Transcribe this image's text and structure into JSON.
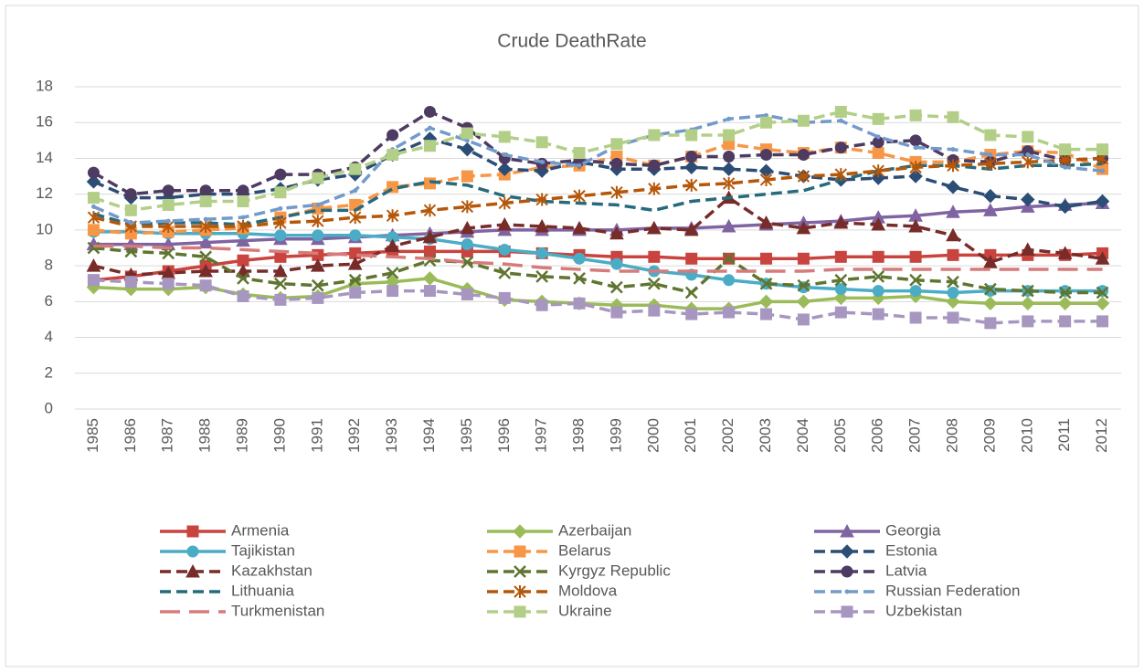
{
  "chart_data": {
    "type": "line",
    "title": "Crude DeathRate",
    "categories": [
      "1985",
      "1986",
      "1987",
      "1988",
      "1989",
      "1990",
      "1991",
      "1992",
      "1993",
      "1994",
      "1995",
      "1996",
      "1997",
      "1998",
      "1999",
      "2000",
      "2001",
      "2002",
      "2003",
      "2004",
      "2005",
      "2006",
      "2007",
      "2008",
      "2009",
      "2010",
      "2011",
      "2012"
    ],
    "ylim": [
      0,
      18
    ],
    "yticks": [
      0,
      2,
      4,
      6,
      8,
      10,
      12,
      14,
      16,
      18
    ],
    "grid": true,
    "legend": "bottom",
    "series": [
      {
        "name": "Armenia",
        "color": "#c9443f",
        "line_style": "solid",
        "marker": "square",
        "values": [
          7.2,
          7.4,
          7.7,
          8.0,
          8.3,
          8.5,
          8.6,
          8.7,
          8.8,
          8.8,
          8.8,
          8.8,
          8.7,
          8.6,
          8.5,
          8.5,
          8.4,
          8.4,
          8.4,
          8.4,
          8.5,
          8.5,
          8.5,
          8.6,
          8.6,
          8.6,
          8.6,
          8.7
        ]
      },
      {
        "name": "Azerbaijan",
        "color": "#9bbb59",
        "line_style": "solid",
        "marker": "diamond",
        "values": [
          6.8,
          6.7,
          6.7,
          6.8,
          6.4,
          6.2,
          6.3,
          7.0,
          7.1,
          7.3,
          6.7,
          6.1,
          6.0,
          5.9,
          5.8,
          5.8,
          5.6,
          5.6,
          6.0,
          6.0,
          6.2,
          6.2,
          6.3,
          6.0,
          5.9,
          5.9,
          5.9,
          5.9
        ]
      },
      {
        "name": "Georgia",
        "color": "#8064a2",
        "line_style": "solid",
        "marker": "triangle",
        "values": [
          9.2,
          9.2,
          9.2,
          9.3,
          9.4,
          9.5,
          9.5,
          9.6,
          9.7,
          9.8,
          9.9,
          10.0,
          10.0,
          10.0,
          10.0,
          10.1,
          10.1,
          10.2,
          10.3,
          10.4,
          10.5,
          10.7,
          10.8,
          11.0,
          11.1,
          11.3,
          11.4,
          11.5
        ]
      },
      {
        "name": "Tajikistan",
        "color": "#4bacc6",
        "line_style": "solid",
        "marker": "circle",
        "values": [
          9.9,
          9.9,
          9.8,
          9.8,
          9.8,
          9.7,
          9.7,
          9.7,
          9.6,
          9.5,
          9.2,
          8.9,
          8.7,
          8.4,
          8.1,
          7.7,
          7.5,
          7.2,
          7.0,
          6.8,
          6.7,
          6.6,
          6.6,
          6.5,
          6.6,
          6.6,
          6.6,
          6.6
        ]
      },
      {
        "name": "Belarus",
        "color": "#f79646",
        "line_style": "dash",
        "marker": "square",
        "values": [
          10.0,
          9.8,
          9.9,
          10.0,
          10.1,
          10.7,
          11.2,
          11.4,
          12.4,
          12.6,
          13.0,
          13.1,
          13.5,
          13.6,
          14.1,
          13.6,
          14.1,
          14.8,
          14.5,
          14.3,
          14.6,
          14.3,
          13.8,
          13.8,
          14.2,
          14.4,
          14.3,
          13.4
        ]
      },
      {
        "name": "Estonia",
        "color": "#2c4d75",
        "line_style": "dash",
        "marker": "diamond",
        "values": [
          12.7,
          11.8,
          11.8,
          12.0,
          12.0,
          12.3,
          12.8,
          13.1,
          14.2,
          15.1,
          14.5,
          13.4,
          13.3,
          13.8,
          13.4,
          13.4,
          13.5,
          13.4,
          13.3,
          13.0,
          12.8,
          12.9,
          13.0,
          12.4,
          11.9,
          11.7,
          11.3,
          11.6
        ]
      },
      {
        "name": "Kazakhstan",
        "color": "#772c2a",
        "line_style": "dash",
        "marker": "triangle",
        "values": [
          8.0,
          7.5,
          7.6,
          7.7,
          7.7,
          7.7,
          8.0,
          8.1,
          9.1,
          9.6,
          10.1,
          10.3,
          10.2,
          10.1,
          9.8,
          10.1,
          10.0,
          11.8,
          10.4,
          10.1,
          10.4,
          10.3,
          10.2,
          9.7,
          8.2,
          8.9,
          8.7,
          8.4
        ]
      },
      {
        "name": "Kyrgyz Republic",
        "color": "#5f7530",
        "line_style": "dash",
        "marker": "x",
        "values": [
          9.0,
          8.8,
          8.7,
          8.5,
          7.3,
          7.0,
          6.9,
          7.2,
          7.6,
          8.3,
          8.2,
          7.6,
          7.4,
          7.3,
          6.8,
          7.0,
          6.5,
          8.4,
          7.0,
          6.9,
          7.2,
          7.4,
          7.2,
          7.1,
          6.7,
          6.6,
          6.5,
          6.5
        ]
      },
      {
        "name": "Latvia",
        "color": "#4d3b62",
        "line_style": "dash",
        "marker": "circle",
        "values": [
          13.2,
          12.0,
          12.2,
          12.2,
          12.2,
          13.1,
          13.1,
          13.5,
          15.3,
          16.6,
          15.7,
          14.0,
          13.7,
          13.9,
          13.7,
          13.6,
          14.1,
          14.1,
          14.2,
          14.2,
          14.6,
          14.9,
          15.0,
          13.9,
          13.8,
          14.4,
          13.9,
          14.0
        ]
      },
      {
        "name": "Lithuania",
        "color": "#276a7c",
        "line_style": "dash",
        "marker": "none",
        "values": [
          10.9,
          10.3,
          10.4,
          10.4,
          10.3,
          10.7,
          11.1,
          11.1,
          12.3,
          12.7,
          12.5,
          11.9,
          11.6,
          11.5,
          11.4,
          11.1,
          11.6,
          11.8,
          12.0,
          12.2,
          12.8,
          13.3,
          13.6,
          13.6,
          13.4,
          13.6,
          13.6,
          13.7
        ]
      },
      {
        "name": "Moldova",
        "color": "#b65708",
        "line_style": "dash",
        "marker": "asterisk",
        "values": [
          10.7,
          10.2,
          10.2,
          10.2,
          10.2,
          10.4,
          10.5,
          10.7,
          10.8,
          11.1,
          11.3,
          11.5,
          11.7,
          11.9,
          12.1,
          12.3,
          12.5,
          12.6,
          12.8,
          13.0,
          13.1,
          13.3,
          13.5,
          13.6,
          13.7,
          13.8,
          13.9,
          14.0
        ]
      },
      {
        "name": "Russian Federation",
        "color": "#729aca",
        "line_style": "dash",
        "marker": "dot",
        "values": [
          11.3,
          10.4,
          10.5,
          10.6,
          10.7,
          11.2,
          11.4,
          12.2,
          14.5,
          15.7,
          15.0,
          14.2,
          13.8,
          13.6,
          14.7,
          15.3,
          15.6,
          16.2,
          16.4,
          16.0,
          16.1,
          15.2,
          14.6,
          14.5,
          14.2,
          14.2,
          13.5,
          13.3
        ]
      },
      {
        "name": "Turkmenistan",
        "color": "#d67b7b",
        "line_style": "longdash",
        "marker": "none",
        "values": [
          9.1,
          9.1,
          9.0,
          9.0,
          8.9,
          8.8,
          8.7,
          8.6,
          8.5,
          8.4,
          8.2,
          8.1,
          7.9,
          7.8,
          7.7,
          7.7,
          7.7,
          7.7,
          7.7,
          7.7,
          7.8,
          7.8,
          7.8,
          7.8,
          7.8,
          7.8,
          7.8,
          7.8
        ]
      },
      {
        "name": "Ukraine",
        "color": "#b3cf87",
        "line_style": "dash",
        "marker": "square",
        "values": [
          11.8,
          11.1,
          11.4,
          11.6,
          11.6,
          12.1,
          12.9,
          13.4,
          14.2,
          14.7,
          15.4,
          15.2,
          14.9,
          14.3,
          14.8,
          15.3,
          15.3,
          15.3,
          16.0,
          16.1,
          16.6,
          16.2,
          16.4,
          16.3,
          15.3,
          15.2,
          14.5,
          14.5
        ]
      },
      {
        "name": "Uzbekistan",
        "color": "#a797c0",
        "line_style": "dash",
        "marker": "square",
        "values": [
          7.2,
          7.1,
          7.0,
          6.9,
          6.3,
          6.1,
          6.2,
          6.5,
          6.6,
          6.6,
          6.4,
          6.2,
          5.8,
          5.9,
          5.4,
          5.5,
          5.3,
          5.4,
          5.3,
          5.0,
          5.4,
          5.3,
          5.1,
          5.1,
          4.8,
          4.9,
          4.9,
          4.9
        ]
      }
    ]
  }
}
